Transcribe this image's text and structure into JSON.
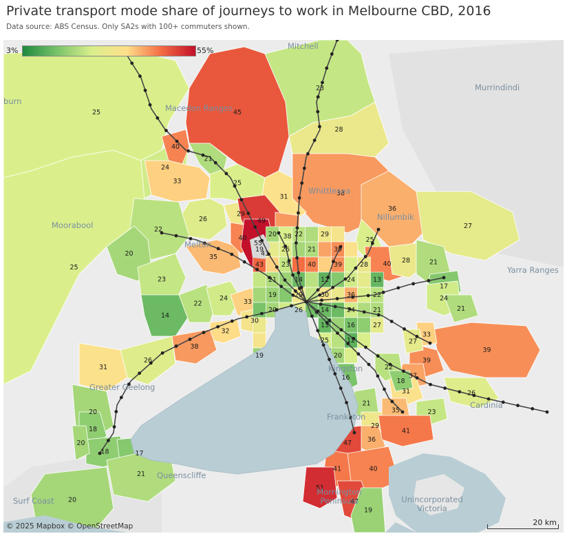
{
  "title": "Private transport mode share of journeys to work in Melbourne CBD, 2016",
  "subtitle": "Data source: ABS Census. Only SA2s with 100+ commuters shown.",
  "legend": {
    "min_label": "3%",
    "max_label": "55%"
  },
  "places": {
    "mitchell": "Mitchell",
    "murrindindi": "Murrindindi",
    "macedon": "Macedon Ranges",
    "burn": "burn",
    "whittlesea": "Whittlesea",
    "nillumbik": "Nillumbik",
    "moorabool": "Moorabool",
    "melton": "Melton",
    "yarra": "Yarra Ranges",
    "cardinia": "Cardinia",
    "geelong": "Greater Geelong",
    "queenscliffe": "Queenscliffe",
    "surfcoast": "Surf Coast",
    "mornington": "Mornington Peninsula",
    "unincorporated": "Unincorporated Victoria",
    "frankston": "Frankston",
    "kingston": "Kingston"
  },
  "copyright": "© 2025 Mapbox © OpenStreetMap",
  "scale_label": "20 km",
  "colors": {
    "low": "#1e8a3e",
    "mid": "#fee08b",
    "high": "#c3102b",
    "water": "#b9cdd4",
    "land": "#ececec"
  },
  "regions": [
    {
      "label": "25",
      "v": 25
    },
    {
      "label": "25",
      "v": 25
    },
    {
      "label": "24",
      "v": 24
    },
    {
      "label": "45",
      "v": 45
    },
    {
      "label": "40",
      "v": 40
    },
    {
      "label": "21",
      "v": 21
    },
    {
      "label": "33",
      "v": 33
    },
    {
      "label": "23",
      "v": 23
    },
    {
      "label": "28",
      "v": 28
    },
    {
      "label": "38",
      "v": 38
    },
    {
      "label": "31",
      "v": 31
    },
    {
      "label": "25",
      "v": 25
    },
    {
      "label": "26",
      "v": 26
    },
    {
      "label": "29",
      "v": 29
    },
    {
      "label": "22",
      "v": 22
    },
    {
      "label": "49",
      "v": 49
    },
    {
      "label": "36",
      "v": 36
    },
    {
      "label": "27",
      "v": 27
    },
    {
      "label": "25",
      "v": 25
    },
    {
      "label": "20",
      "v": 20
    },
    {
      "label": "23",
      "v": 23
    },
    {
      "label": "35",
      "v": 35
    },
    {
      "label": "40",
      "v": 40
    },
    {
      "label": "55",
      "v": 55
    },
    {
      "label": "43",
      "v": 43
    },
    {
      "label": "38",
      "v": 38
    },
    {
      "label": "40",
      "v": 40
    },
    {
      "label": "28",
      "v": 28
    },
    {
      "label": "21",
      "v": 21
    },
    {
      "label": "17",
      "v": 17
    },
    {
      "label": "14",
      "v": 14
    },
    {
      "label": "22",
      "v": 22
    },
    {
      "label": "24",
      "v": 24
    },
    {
      "label": "33",
      "v": 33
    },
    {
      "label": "30",
      "v": 30
    },
    {
      "label": "32",
      "v": 32
    },
    {
      "label": "38",
      "v": 38
    },
    {
      "label": "26",
      "v": 26
    },
    {
      "label": "31",
      "v": 31
    },
    {
      "label": "20",
      "v": 20
    },
    {
      "label": "18",
      "v": 18
    },
    {
      "label": "18",
      "v": 18
    },
    {
      "label": "20",
      "v": 20
    },
    {
      "label": "17",
      "v": 17
    },
    {
      "label": "21",
      "v": 21
    },
    {
      "label": "20",
      "v": 20
    },
    {
      "label": "24",
      "v": 24
    },
    {
      "label": "39",
      "v": 39
    },
    {
      "label": "39",
      "v": 39
    },
    {
      "label": "37",
      "v": 37
    },
    {
      "label": "31",
      "v": 31
    },
    {
      "label": "26",
      "v": 26
    },
    {
      "label": "23",
      "v": 23
    },
    {
      "label": "21",
      "v": 21
    },
    {
      "label": "29",
      "v": 29
    },
    {
      "label": "35",
      "v": 35
    },
    {
      "label": "36",
      "v": 36
    },
    {
      "label": "41",
      "v": 41
    },
    {
      "label": "47",
      "v": 47
    },
    {
      "label": "40",
      "v": 40
    },
    {
      "label": "41",
      "v": 41
    },
    {
      "label": "51",
      "v": 51
    },
    {
      "label": "47",
      "v": 47
    },
    {
      "label": "19",
      "v": 19
    },
    {
      "label": "16",
      "v": 16
    },
    {
      "label": "22",
      "v": 22
    },
    {
      "label": "18",
      "v": 18
    },
    {
      "label": "33",
      "v": 33
    },
    {
      "label": "27",
      "v": 27
    },
    {
      "label": "21",
      "v": 21
    }
  ],
  "inner_labels": [
    "20",
    "25",
    "22",
    "21",
    "29",
    "30",
    "19",
    "27",
    "26",
    "20",
    "21",
    "37",
    "39",
    "31",
    "43",
    "33",
    "23",
    "42",
    "40",
    "33",
    "39",
    "25",
    "28",
    "23",
    "21",
    "19",
    "14",
    "22",
    "12",
    "17",
    "24",
    "27",
    "13",
    "20",
    "19",
    "17",
    "29",
    "23",
    "30",
    "28",
    "36",
    "25",
    "22",
    "16",
    "20",
    "24",
    "26",
    "15",
    "14",
    "14",
    "24",
    "21",
    "21",
    "28",
    "13",
    "19",
    "16",
    "18",
    "27",
    "30",
    "25",
    "22",
    "12",
    "25",
    "19",
    "11"
  ]
}
